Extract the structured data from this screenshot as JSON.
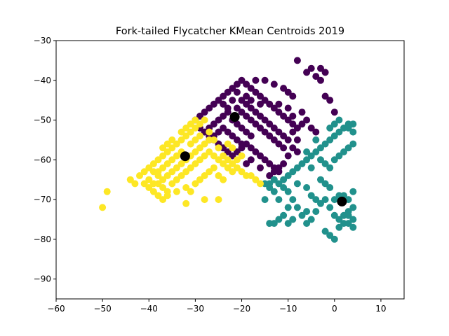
{
  "chart_data": {
    "type": "scatter",
    "title": "Fork-tailed Flycatcher KMean Centroids 2019",
    "xlabel": "",
    "ylabel": "",
    "xlim": [
      -60,
      15
    ],
    "ylim": [
      -95,
      -30
    ],
    "xticks": [
      -60,
      -50,
      -40,
      -30,
      -20,
      -10,
      0,
      10
    ],
    "yticks": [
      -90,
      -80,
      -70,
      -60,
      -50,
      -40,
      -30
    ],
    "xtick_labels": [
      "−60",
      "−50",
      "−40",
      "−30",
      "−20",
      "−10",
      "0",
      "10"
    ],
    "ytick_labels": [
      "−90",
      "−80",
      "−70",
      "−60",
      "−50",
      "−40",
      "−30"
    ],
    "grid": false,
    "legend": "none",
    "colors": {
      "cluster_purple": "#440154",
      "cluster_teal": "#21918c",
      "cluster_yellow": "#fde725",
      "centroid": "#000000"
    },
    "clusters": [
      {
        "color_key": "cluster_purple",
        "points": [
          [
            -30,
            -50
          ],
          [
            -29,
            -49
          ],
          [
            -28,
            -48
          ],
          [
            -27,
            -47
          ],
          [
            -26,
            -46
          ],
          [
            -25,
            -45
          ],
          [
            -24,
            -44
          ],
          [
            -23,
            -43
          ],
          [
            -22,
            -42
          ],
          [
            -21,
            -41
          ],
          [
            -20,
            -40
          ],
          [
            -19,
            -41
          ],
          [
            -18,
            -42
          ],
          [
            -17,
            -43
          ],
          [
            -16,
            -44
          ],
          [
            -15,
            -45
          ],
          [
            -14,
            -46
          ],
          [
            -13,
            -47
          ],
          [
            -12,
            -48
          ],
          [
            -11,
            -49
          ],
          [
            -10,
            -50
          ],
          [
            -9,
            -51
          ],
          [
            -8,
            -52
          ],
          [
            -7,
            -51
          ],
          [
            -6,
            -50
          ],
          [
            -5,
            -52
          ],
          [
            -4,
            -53
          ],
          [
            -29,
            -52
          ],
          [
            -28,
            -53
          ],
          [
            -27,
            -54
          ],
          [
            -26,
            -55
          ],
          [
            -25,
            -56
          ],
          [
            -24,
            -57
          ],
          [
            -23,
            -58
          ],
          [
            -22,
            -59
          ],
          [
            -21,
            -58
          ],
          [
            -20,
            -57
          ],
          [
            -19,
            -56
          ],
          [
            -18,
            -57
          ],
          [
            -17,
            -58
          ],
          [
            -16,
            -59
          ],
          [
            -15,
            -60
          ],
          [
            -14,
            -61
          ],
          [
            -13,
            -62
          ],
          [
            -12,
            -63
          ],
          [
            -11,
            -61
          ],
          [
            -10,
            -59
          ],
          [
            -9,
            -57
          ],
          [
            -8,
            -55
          ],
          [
            -22,
            -50
          ],
          [
            -21,
            -51
          ],
          [
            -20,
            -52
          ],
          [
            -19,
            -53
          ],
          [
            -18,
            -54
          ],
          [
            -23,
            -48
          ],
          [
            -24,
            -49
          ],
          [
            -25,
            -50
          ],
          [
            -26,
            -51
          ],
          [
            -27,
            -52
          ],
          [
            -20,
            -45
          ],
          [
            -19,
            -46
          ],
          [
            -18,
            -47
          ],
          [
            -17,
            -48
          ],
          [
            -16,
            -49
          ],
          [
            -15,
            -50
          ],
          [
            -14,
            -51
          ],
          [
            -13,
            -52
          ],
          [
            -12,
            -53
          ],
          [
            -11,
            -54
          ],
          [
            -24,
            -52
          ],
          [
            -23,
            -53
          ],
          [
            -22,
            -54
          ],
          [
            -21,
            -55
          ],
          [
            -20,
            -56
          ],
          [
            -25,
            -53
          ],
          [
            -26,
            -54
          ],
          [
            -27,
            -55
          ],
          [
            -18,
            -50
          ],
          [
            -17,
            -51
          ],
          [
            -16,
            -52
          ],
          [
            -15,
            -53
          ],
          [
            -14,
            -54
          ],
          [
            -13,
            -55
          ],
          [
            -12,
            -56
          ],
          [
            -11,
            -57
          ],
          [
            -10,
            -55
          ],
          [
            -9,
            -53
          ],
          [
            -17,
            -40
          ],
          [
            -15,
            -40
          ],
          [
            -13,
            -41
          ],
          [
            -11,
            -42
          ],
          [
            -10,
            -43
          ],
          [
            -9,
            -44
          ],
          [
            -6,
            -38
          ],
          [
            -5,
            -37
          ],
          [
            -4,
            -39
          ],
          [
            -3,
            -40
          ],
          [
            -2,
            -44
          ],
          [
            -1,
            -45
          ],
          [
            0,
            -48
          ],
          [
            -8,
            -35
          ],
          [
            -3,
            -37
          ],
          [
            -2,
            -38
          ],
          [
            -7,
            -48
          ],
          [
            -14,
            -64
          ],
          [
            -13,
            -63
          ],
          [
            -12,
            -62
          ],
          [
            -16,
            -62
          ],
          [
            -18,
            -60
          ],
          [
            -19,
            -61
          ],
          [
            -8,
            -58
          ],
          [
            -19,
            -44
          ],
          [
            -21,
            -43
          ],
          [
            -22,
            -45
          ],
          [
            -24,
            -46
          ],
          [
            -23,
            -47
          ],
          [
            -21,
            -47
          ],
          [
            -20,
            -48
          ],
          [
            -19,
            -49
          ],
          [
            -18,
            -45
          ],
          [
            -16,
            -46
          ],
          [
            -12,
            -46
          ],
          [
            -10,
            -47
          ],
          [
            -9,
            -49
          ]
        ]
      },
      {
        "color_key": "cluster_teal",
        "points": [
          [
            -15,
            -66
          ],
          [
            -14,
            -67
          ],
          [
            -13,
            -68
          ],
          [
            -12,
            -66
          ],
          [
            -11,
            -65
          ],
          [
            -10,
            -64
          ],
          [
            -9,
            -63
          ],
          [
            -8,
            -62
          ],
          [
            -7,
            -61
          ],
          [
            -6,
            -60
          ],
          [
            -5,
            -59
          ],
          [
            -4,
            -58
          ],
          [
            -3,
            -57
          ],
          [
            -2,
            -56
          ],
          [
            -1,
            -55
          ],
          [
            0,
            -54
          ],
          [
            1,
            -53
          ],
          [
            2,
            -52
          ],
          [
            3,
            -51
          ],
          [
            4,
            -53
          ],
          [
            -3,
            -60
          ],
          [
            -2,
            -61
          ],
          [
            -1,
            -62
          ],
          [
            0,
            -60
          ],
          [
            1,
            -59
          ],
          [
            2,
            -58
          ],
          [
            3,
            -57
          ],
          [
            4,
            -56
          ],
          [
            -4,
            -55
          ],
          [
            -1,
            -52
          ],
          [
            0,
            -51
          ],
          [
            1,
            -50
          ],
          [
            3,
            -52
          ],
          [
            4,
            -51
          ],
          [
            -3,
            -65
          ],
          [
            -2,
            -66
          ],
          [
            -1,
            -67
          ],
          [
            -14,
            -76
          ],
          [
            -13,
            -76
          ],
          [
            -12,
            -75
          ],
          [
            -11,
            -74
          ],
          [
            -10,
            -72
          ],
          [
            -9,
            -70
          ],
          [
            -8,
            -72
          ],
          [
            -7,
            -74
          ],
          [
            -6,
            -76
          ],
          [
            -5,
            -75
          ],
          [
            -4,
            -73
          ],
          [
            -3,
            -71
          ],
          [
            -2,
            -70
          ],
          [
            -1,
            -72
          ],
          [
            0,
            -74
          ],
          [
            1,
            -75
          ],
          [
            2,
            -76
          ],
          [
            3,
            -73
          ],
          [
            4,
            -72
          ],
          [
            -2,
            -78
          ],
          [
            -1,
            -79
          ],
          [
            0,
            -80
          ],
          [
            1,
            -77
          ],
          [
            2,
            -74
          ],
          [
            3,
            -70
          ],
          [
            4,
            -68
          ],
          [
            -14,
            -66
          ],
          [
            -13,
            -65
          ],
          [
            -11,
            -67
          ],
          [
            -12,
            -70
          ],
          [
            -10,
            -68
          ],
          [
            -8,
            -66
          ],
          [
            -6,
            -67
          ],
          [
            -5,
            -69
          ],
          [
            -4,
            -70
          ],
          [
            -6,
            -73
          ],
          [
            -9,
            -75
          ],
          [
            -10,
            -76
          ],
          [
            -15,
            -70
          ],
          [
            3,
            -74
          ],
          [
            4,
            -75
          ],
          [
            2,
            -69
          ],
          [
            1,
            -69
          ],
          [
            0,
            -70
          ],
          [
            3,
            -76
          ],
          [
            4,
            -77
          ],
          [
            -5,
            -62
          ],
          [
            -6,
            -58
          ]
        ]
      },
      {
        "color_key": "cluster_yellow",
        "points": [
          [
            -50,
            -72
          ],
          [
            -49,
            -68
          ],
          [
            -44,
            -65
          ],
          [
            -43,
            -66
          ],
          [
            -42,
            -64
          ],
          [
            -41,
            -63
          ],
          [
            -40,
            -62
          ],
          [
            -39,
            -61
          ],
          [
            -38,
            -60
          ],
          [
            -37,
            -59
          ],
          [
            -36,
            -58
          ],
          [
            -35,
            -57
          ],
          [
            -34,
            -56
          ],
          [
            -33,
            -55
          ],
          [
            -32,
            -54
          ],
          [
            -31,
            -53
          ],
          [
            -30,
            -52
          ],
          [
            -29,
            -51
          ],
          [
            -28,
            -50
          ],
          [
            -27,
            -53
          ],
          [
            -26,
            -55
          ],
          [
            -25,
            -57
          ],
          [
            -24,
            -59
          ],
          [
            -23,
            -60
          ],
          [
            -22,
            -61
          ],
          [
            -21,
            -62
          ],
          [
            -20,
            -63
          ],
          [
            -19,
            -64
          ],
          [
            -18,
            -64
          ],
          [
            -17,
            -65
          ],
          [
            -16,
            -66
          ],
          [
            -41,
            -66
          ],
          [
            -40,
            -67
          ],
          [
            -39,
            -68
          ],
          [
            -38,
            -69
          ],
          [
            -37,
            -70
          ],
          [
            -36,
            -68
          ],
          [
            -35,
            -66
          ],
          [
            -34,
            -65
          ],
          [
            -33,
            -64
          ],
          [
            -32,
            -63
          ],
          [
            -31,
            -62
          ],
          [
            -30,
            -61
          ],
          [
            -29,
            -60
          ],
          [
            -28,
            -59
          ],
          [
            -27,
            -58
          ],
          [
            -26,
            -59
          ],
          [
            -25,
            -60
          ],
          [
            -24,
            -61
          ],
          [
            -23,
            -62
          ],
          [
            -22,
            -63
          ],
          [
            -39,
            -63
          ],
          [
            -38,
            -64
          ],
          [
            -37,
            -65
          ],
          [
            -36,
            -64
          ],
          [
            -35,
            -63
          ],
          [
            -34,
            -62
          ],
          [
            -33,
            -61
          ],
          [
            -32,
            -60
          ],
          [
            -31,
            -59
          ],
          [
            -30,
            -58
          ],
          [
            -29,
            -57
          ],
          [
            -28,
            -56
          ],
          [
            -27,
            -55
          ],
          [
            -31,
            -56
          ],
          [
            -30,
            -55
          ],
          [
            -29,
            -54
          ],
          [
            -33,
            -58
          ],
          [
            -34,
            -59
          ],
          [
            -35,
            -60
          ],
          [
            -36,
            -61
          ],
          [
            -37,
            -62
          ],
          [
            -38,
            -63
          ],
          [
            -39,
            -66
          ],
          [
            -40,
            -65
          ],
          [
            -32,
            -67
          ],
          [
            -31,
            -68
          ],
          [
            -30,
            -66
          ],
          [
            -29,
            -65
          ],
          [
            -28,
            -64
          ],
          [
            -27,
            -63
          ],
          [
            -26,
            -62
          ],
          [
            -25,
            -64
          ],
          [
            -24,
            -65
          ],
          [
            -32,
            -71
          ],
          [
            -28,
            -70
          ],
          [
            -25,
            -70
          ],
          [
            -37,
            -57
          ],
          [
            -36,
            -56
          ],
          [
            -35,
            -55
          ],
          [
            -33,
            -53
          ],
          [
            -32,
            -52
          ],
          [
            -31,
            -51
          ],
          [
            -30,
            -50
          ],
          [
            -21,
            -60
          ],
          [
            -20,
            -59
          ],
          [
            -23,
            -56
          ],
          [
            -22,
            -57
          ],
          [
            -38,
            -66
          ],
          [
            -37,
            -67
          ],
          [
            -36,
            -69
          ],
          [
            -34,
            -68
          ]
        ]
      }
    ],
    "centroids": [
      {
        "color_key": "centroid",
        "x": -21.5,
        "y": -49.2
      },
      {
        "color_key": "centroid",
        "x": 1.6,
        "y": -70.5
      },
      {
        "color_key": "centroid",
        "x": -32.2,
        "y": -59.1
      }
    ]
  }
}
